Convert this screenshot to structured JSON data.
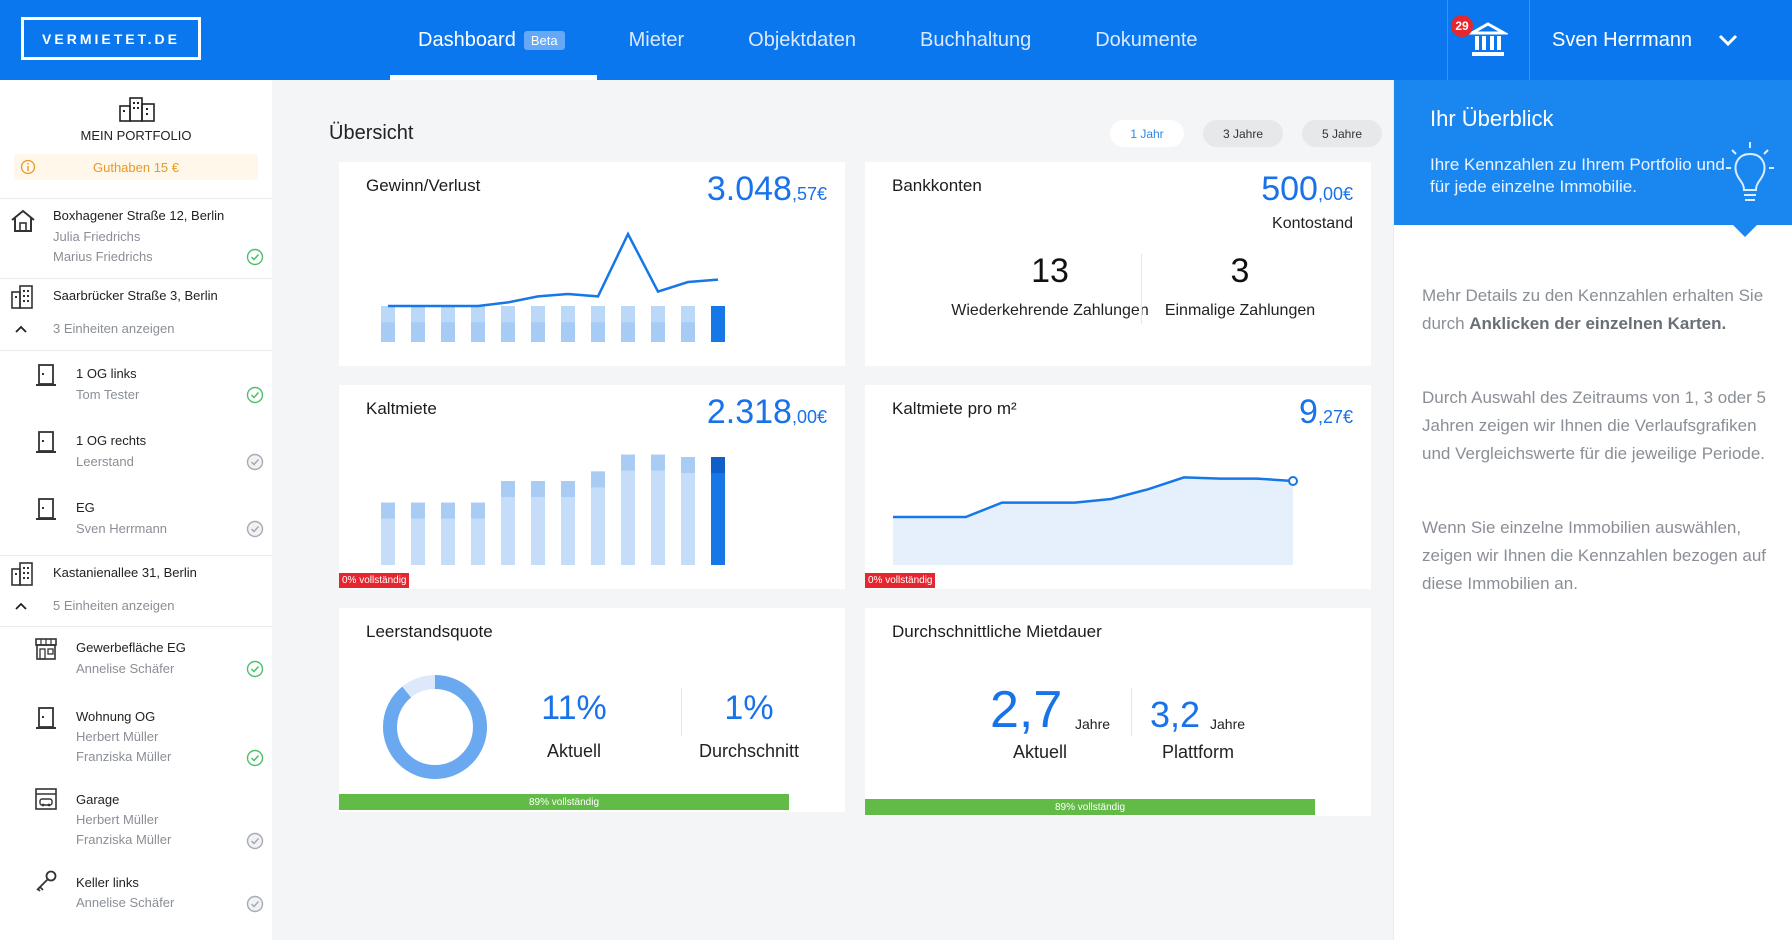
{
  "header": {
    "logo": "VERMIETET.DE",
    "nav": [
      {
        "label": "Dashboard",
        "active": true,
        "badge": "Beta"
      },
      {
        "label": "Mieter"
      },
      {
        "label": "Objektdaten"
      },
      {
        "label": "Buchhaltung"
      },
      {
        "label": "Dokumente"
      }
    ],
    "notification_count": "29",
    "user_name": "Sven Herrmann"
  },
  "sidebar": {
    "title": "MEIN PORTFOLIO",
    "credit": "Guthaben 15 €",
    "properties": [
      {
        "title": "Boxhagener Straße 12, Berlin",
        "lines": [
          "Julia Friedrichs",
          "Marius Friedrichs"
        ],
        "status": "ok"
      },
      {
        "title": "Saarbrücker Straße 3, Berlin",
        "expand": "3 Einheiten anzeigen"
      },
      {
        "title": "1 OG links",
        "lines": [
          "Tom Tester"
        ],
        "status": "ok"
      },
      {
        "title": "1 OG rechts",
        "lines": [
          "Leerstand"
        ],
        "status": "pending"
      },
      {
        "title": "EG",
        "lines": [
          "Sven Herrmann"
        ],
        "status": "pending"
      },
      {
        "title": "Kastanienallee 31, Berlin",
        "expand": "5 Einheiten anzeigen"
      },
      {
        "title": "Gewerbefläche EG",
        "lines": [
          "Annelise Schäfer"
        ],
        "status": "ok"
      },
      {
        "title": "Wohnung OG",
        "lines": [
          "Herbert Müller",
          "Franziska Müller"
        ],
        "status": "ok"
      },
      {
        "title": "Garage",
        "lines": [
          "Herbert Müller",
          "Franziska Müller"
        ],
        "status": "pending"
      },
      {
        "title": "Keller links",
        "lines": [
          "Annelise Schäfer"
        ],
        "status": "pending"
      }
    ]
  },
  "main": {
    "title": "Übersicht",
    "ranges": [
      "1 Jahr",
      "3 Jahre",
      "5 Jahre"
    ],
    "active_range": "1 Jahr",
    "gewinn": {
      "title": "Gewinn/Verlust",
      "value_int": "3.048",
      "value_dec": ",57€"
    },
    "bank": {
      "title": "Bankkonten",
      "value_int": "500",
      "value_dec": ",00€",
      "caption": "Kontostand",
      "recurring": "13",
      "recurring_label": "Wiederkehrende Zahlungen",
      "onetime": "3",
      "onetime_label": "Einmalige Zahlungen"
    },
    "kaltmiete": {
      "title": "Kaltmiete",
      "value_int": "2.318",
      "value_dec": ",00€",
      "completeness": "0% vollständig"
    },
    "kaltmiete_m2": {
      "title": "Kaltmiete pro m²",
      "value_int": "9",
      "value_dec": ",27€",
      "completeness": "0% vollständig"
    },
    "leerstand": {
      "title": "Leerstandsquote",
      "current": "11%",
      "current_label": "Aktuell",
      "avg": "1%",
      "avg_label": "Durchschnitt",
      "completeness": "89% vollständig",
      "completeness_value": 0.89
    },
    "mietdauer": {
      "title": "Durchschnittliche Mietdauer",
      "current": "2,7",
      "current_unit": "Jahre",
      "current_label": "Aktuell",
      "platform": "3,2",
      "platform_unit": "Jahre",
      "platform_label": "Plattform",
      "completeness": "89% vollständig",
      "completeness_value": 0.89
    }
  },
  "right_panel": {
    "title": "Ihr Überblick",
    "subtitle": "Ihre Kennzahlen zu Ihrem Portfolio und für jede einzelne Immobilie.",
    "p1_pre": "Mehr Details zu den Kennzahlen erhalten Sie durch ",
    "p1_bold": "Anklicken der einzelnen Karten.",
    "p2": "Durch Auswahl des Zeitraums von 1, 3 oder 5 Jahren zeigen wir Ihnen die Verlaufsgrafiken und Vergleichswerte für die jeweilige Periode.",
    "p3": "Wenn Sie einzelne Immobilien auswählen, zeigen wir Ihnen die Kennzahlen bezogen auf diese Immobilien an."
  },
  "colors": {
    "primary": "#0a77ee",
    "accent": "#1872ea",
    "success": "#62bb46",
    "danger": "#e6262e",
    "warning": "#e59a2a"
  },
  "chart_data": [
    {
      "type": "bar",
      "name": "gewinn",
      "values": [
        30,
        30,
        30,
        30,
        30,
        30,
        30,
        30,
        30,
        30,
        30,
        30
      ],
      "line": [
        30,
        30,
        30,
        30,
        33,
        38,
        40,
        38,
        90,
        42,
        50,
        52
      ],
      "ylim": [
        0,
        100
      ]
    },
    {
      "type": "bar",
      "name": "kaltmiete",
      "values": [
        52,
        52,
        52,
        52,
        70,
        70,
        70,
        78,
        92,
        92,
        90,
        90
      ],
      "ylim": [
        0,
        100
      ]
    },
    {
      "type": "area",
      "name": "kaltmiete_m2",
      "values": [
        40,
        40,
        40,
        52,
        52,
        52,
        55,
        63,
        73,
        72,
        72,
        70
      ],
      "ylim": [
        0,
        100
      ]
    },
    {
      "type": "pie",
      "name": "leerstand",
      "values": [
        11,
        89
      ]
    }
  ]
}
